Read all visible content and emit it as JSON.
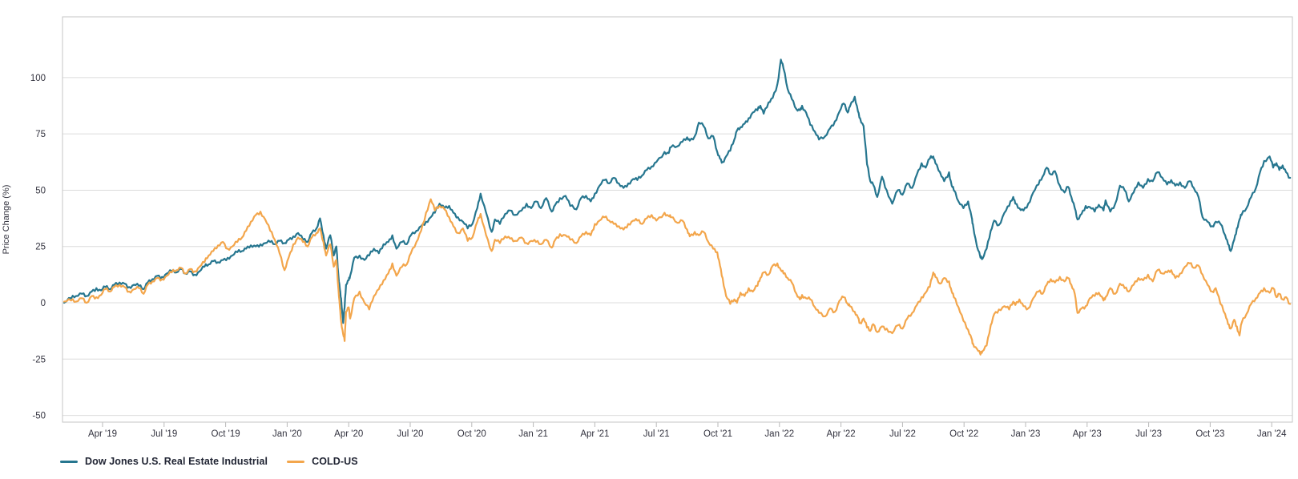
{
  "page": {
    "background": "#ffffff"
  },
  "chart_data": {
    "type": "line",
    "title": "",
    "ylabel": "Price Change (%)",
    "grid": "horizontal",
    "legend_position": "bottom-left",
    "x_axis": {
      "tick_labels": [
        "Apr '19",
        "Jul '19",
        "Oct '19",
        "Jan '20",
        "Apr '20",
        "Jul '20",
        "Oct '20",
        "Jan '21",
        "Apr '21",
        "Jul '21",
        "Oct '21",
        "Jan '22",
        "Apr '22",
        "Jul '22",
        "Oct '22",
        "Jan '23",
        "Apr '23",
        "Jul '23",
        "Oct '23",
        "Jan '24"
      ],
      "tick_months_from_apr2019": [
        0,
        3,
        6,
        9,
        12,
        15,
        18,
        21,
        24,
        27,
        30,
        33,
        36,
        39,
        42,
        45,
        48,
        51,
        54,
        57
      ]
    },
    "y_axis": {
      "ticks": [
        100,
        75,
        50,
        25,
        0,
        -25,
        -50
      ],
      "range": [
        -53,
        127
      ]
    },
    "x_months_from_apr2019": [
      -1.87,
      -1.53,
      -1.3,
      -1.0,
      -0.77,
      -0.53,
      -0.3,
      -0.07,
      0.13,
      0.37,
      0.57,
      0.83,
      1.07,
      1.3,
      1.53,
      1.77,
      2.0,
      2.2,
      2.43,
      2.67,
      2.9,
      3.13,
      3.37,
      3.6,
      3.83,
      4.03,
      4.27,
      4.5,
      4.73,
      4.97,
      5.17,
      5.4,
      5.63,
      5.87,
      6.1,
      6.33,
      6.57,
      6.8,
      7.0,
      7.23,
      7.47,
      7.7,
      7.93,
      8.17,
      8.4,
      8.63,
      8.87,
      9.07,
      9.3,
      9.53,
      9.77,
      10.0,
      10.2,
      10.43,
      10.6,
      10.77,
      10.9,
      11.1,
      11.27,
      11.4,
      11.5,
      11.57,
      11.63,
      11.73,
      11.8,
      11.87,
      12.0,
      12.07,
      12.27,
      12.53,
      12.77,
      13.0,
      13.23,
      13.47,
      13.7,
      13.93,
      14.13,
      14.33,
      14.6,
      14.83,
      15.03,
      15.3,
      15.53,
      15.77,
      16.0,
      16.2,
      16.43,
      16.67,
      16.9,
      17.1,
      17.33,
      17.57,
      17.8,
      18.03,
      18.27,
      18.43,
      18.7,
      18.97,
      19.13,
      19.37,
      19.63,
      19.87,
      20.1,
      20.43,
      20.67,
      20.9,
      21.13,
      21.37,
      21.63,
      21.9,
      22.07,
      22.3,
      22.57,
      22.8,
      23.1,
      23.33,
      23.57,
      23.8,
      24.0,
      24.23,
      24.47,
      24.7,
      24.93,
      25.17,
      25.4,
      25.63,
      25.87,
      26.07,
      26.3,
      26.53,
      26.77,
      27.0,
      27.4,
      27.6,
      27.7,
      28.03,
      28.27,
      28.5,
      28.63,
      28.87,
      29.07,
      29.3,
      29.53,
      29.77,
      29.97,
      30.1,
      30.23,
      30.4,
      30.6,
      30.8,
      30.93,
      31.1,
      31.3,
      31.5,
      31.7,
      31.93,
      32.07,
      32.23,
      32.47,
      32.67,
      32.9,
      33.07,
      33.2,
      33.4,
      33.6,
      33.83,
      34.0,
      34.1,
      34.3,
      34.5,
      34.73,
      34.93,
      35.23,
      35.47,
      35.7,
      35.93,
      36.13,
      36.33,
      36.43,
      36.67,
      36.83,
      36.93,
      37.1,
      37.27,
      37.43,
      37.57,
      37.77,
      38.0,
      38.23,
      38.5,
      38.77,
      39.0,
      39.23,
      39.47,
      39.7,
      39.93,
      40.13,
      40.33,
      40.5,
      40.6,
      40.83,
      41.03,
      41.27,
      41.4,
      41.5,
      41.73,
      41.97,
      42.2,
      42.37,
      42.43,
      42.63,
      42.8,
      42.9,
      43.1,
      43.3,
      43.47,
      43.7,
      43.97,
      44.2,
      44.4,
      44.5,
      44.7,
      44.9,
      45.13,
      45.37,
      45.63,
      45.83,
      46.03,
      46.23,
      46.43,
      46.67,
      46.9,
      47.07,
      47.23,
      47.4,
      47.53,
      47.73,
      47.93,
      48.13,
      48.37,
      48.57,
      48.8,
      48.9,
      49.13,
      49.37,
      49.6,
      49.83,
      50.03,
      50.27,
      50.5,
      50.73,
      50.97,
      51.2,
      51.43,
      51.67,
      51.9,
      52.1,
      52.3,
      52.53,
      52.77,
      53.0,
      53.2,
      53.43,
      53.63,
      53.87,
      54.1,
      54.27,
      54.5,
      54.73,
      54.87,
      55.0,
      55.17,
      55.3,
      55.43,
      55.53,
      55.77,
      56.0,
      56.23,
      56.43,
      56.63,
      56.9,
      57.07,
      57.23,
      57.37,
      57.53,
      57.7,
      57.9
    ],
    "series": [
      {
        "name": "Dow Jones U.S. Real Estate Industrial",
        "color": "#26768F",
        "values": [
          0,
          2,
          3,
          4,
          3,
          5,
          6.5,
          5.5,
          7,
          6,
          8,
          9,
          8.5,
          7,
          8,
          7.5,
          6,
          9,
          10.5,
          12,
          11.5,
          13,
          14,
          13.5,
          15,
          13,
          14,
          12.5,
          14,
          16,
          17,
          18.5,
          18,
          19,
          20,
          21,
          22.5,
          23,
          24,
          25.5,
          25,
          26,
          26.5,
          27,
          26,
          27.5,
          26.5,
          28,
          29.5,
          31,
          28,
          27,
          31,
          33,
          37.5,
          30,
          24,
          30,
          21,
          25,
          12,
          6,
          2,
          -9,
          -2,
          8,
          10,
          12,
          20,
          21,
          19,
          21,
          24,
          22,
          26,
          27,
          30,
          24,
          27,
          26,
          30,
          32,
          34,
          36,
          38,
          40,
          44,
          42,
          43,
          40,
          38,
          36,
          33,
          35,
          42,
          48.5,
          40,
          31.5,
          37,
          35,
          39.5,
          41,
          39,
          41,
          44,
          42,
          45,
          42,
          46.5,
          40.5,
          43.5,
          46.5,
          47.5,
          43,
          41.5,
          46.5,
          47.5,
          45,
          48.5,
          52,
          54.5,
          53,
          55.5,
          53,
          51,
          53,
          55,
          54.5,
          56.5,
          59,
          60.5,
          62.5,
          67,
          66.5,
          69,
          69.5,
          71.5,
          73.5,
          72,
          74,
          80,
          78.5,
          73,
          74,
          67,
          64,
          62.5,
          65,
          67.5,
          72.5,
          76.5,
          78,
          79.5,
          82,
          84.5,
          85.5,
          87.5,
          84,
          89,
          91,
          97,
          108,
          104,
          95,
          90.5,
          86,
          85.5,
          87.5,
          84.5,
          79,
          76,
          72.5,
          74,
          77.5,
          80.5,
          85,
          88.5,
          84.5,
          87,
          91.5,
          85,
          82,
          78.5,
          61.5,
          54,
          52.5,
          47,
          56,
          50,
          44,
          50,
          48,
          53,
          51,
          57,
          62,
          60,
          64,
          65,
          62,
          58,
          54,
          58,
          52,
          50,
          45,
          42,
          45,
          38,
          35,
          25,
          20,
          19.5,
          24,
          32,
          36.5,
          34.5,
          40,
          43,
          47,
          44,
          42,
          41,
          44,
          49,
          52.5,
          56,
          60,
          57,
          58.5,
          52,
          49,
          51.5,
          47,
          42,
          37,
          39.5,
          43,
          42.5,
          40.5,
          43.5,
          41,
          45.5,
          40.5,
          44,
          52,
          50,
          45,
          49,
          53.5,
          51,
          55,
          54,
          58,
          55.5,
          52.5,
          54.5,
          52,
          53.5,
          51,
          54,
          51,
          47,
          38,
          36,
          34,
          36,
          35,
          30,
          26,
          23,
          28,
          33,
          37,
          39,
          42,
          47,
          51,
          58,
          63,
          65,
          60,
          62,
          59,
          61,
          58,
          55.5
        ]
      },
      {
        "name": "COLD-US",
        "color": "#F3A64C",
        "values": [
          0.5,
          1,
          0.5,
          2,
          0,
          3,
          2.5,
          3.5,
          6,
          5,
          7,
          8,
          7,
          5,
          6,
          6.5,
          4,
          8,
          9.5,
          11,
          10.5,
          12,
          13.5,
          14.5,
          15.5,
          13,
          15,
          14,
          16,
          18,
          21,
          23,
          25.5,
          27,
          24,
          25,
          27,
          29,
          32,
          36,
          39,
          40.5,
          37,
          32,
          28,
          22,
          14.5,
          20,
          26,
          29,
          27,
          25,
          29,
          31,
          33,
          27,
          21,
          26,
          16,
          19,
          6,
          -2,
          -8,
          -14,
          -17,
          -4,
          -2,
          -7,
          2,
          5,
          0,
          -3,
          3,
          6,
          10,
          13,
          17.5,
          12,
          16,
          17,
          22,
          27,
          32,
          40,
          46,
          41,
          43,
          41.5,
          38,
          34,
          31,
          33,
          27.5,
          29,
          36,
          39.5,
          30,
          23,
          28,
          26.5,
          29.5,
          28.5,
          27.5,
          29,
          26.5,
          27.5,
          27,
          26,
          28,
          24.5,
          28,
          30.5,
          30,
          28,
          26.5,
          29.5,
          31.5,
          30,
          35,
          36.5,
          38,
          36.5,
          35,
          34,
          32.5,
          35,
          36.5,
          36.5,
          35,
          37.5,
          39,
          36.5,
          40,
          38.5,
          38,
          35.5,
          36.5,
          32.5,
          29.5,
          31.5,
          30,
          31.5,
          27,
          24,
          22.5,
          16.5,
          11,
          3,
          -0.5,
          1.5,
          0,
          4.5,
          3,
          6.5,
          5,
          7.5,
          11,
          13.5,
          12.5,
          16.5,
          17.5,
          14.5,
          13,
          11,
          9,
          4,
          1.5,
          3.5,
          2,
          1.5,
          -2,
          -4.5,
          -6,
          -2.5,
          -4,
          1,
          2.5,
          -0.5,
          -1.5,
          -4,
          -6.5,
          -9,
          -7,
          -11,
          -12.5,
          -9.5,
          -13,
          -10.5,
          -11.5,
          -13.5,
          -10,
          -11.5,
          -7,
          -4.5,
          -1,
          2.5,
          4.5,
          7,
          13.5,
          11.5,
          8.5,
          11,
          9.5,
          5,
          2.5,
          -2,
          -8,
          -12,
          -16,
          -18,
          -20.5,
          -23,
          -21.5,
          -19,
          -10,
          -5,
          -3,
          -1.5,
          -3,
          0.5,
          -1,
          1.5,
          -1.5,
          -2.5,
          2,
          5,
          4,
          8,
          10.5,
          9,
          11.5,
          9.5,
          11,
          8,
          4,
          -4.5,
          -2.5,
          -1.5,
          2,
          3,
          4.5,
          1,
          2.5,
          6.5,
          4,
          8.5,
          6.5,
          5,
          8,
          11,
          10,
          12.5,
          9.5,
          14.5,
          13,
          13.5,
          14.5,
          11,
          13,
          16,
          17.5,
          15.5,
          16.5,
          12.5,
          8,
          5,
          6.5,
          -0.5,
          -5,
          -9.5,
          -11.5,
          -7.5,
          -10.5,
          -14.5,
          -9,
          -5,
          -0.5,
          2,
          4.5,
          6.5,
          4.5,
          6.5,
          2.5,
          4,
          1.5,
          2.5,
          -0.5
        ]
      }
    ],
    "style": {
      "gridline_color": "#dcdcdc",
      "border_color": "#c6c6c6",
      "tick_color": "#b9b9b9",
      "label_color": "#33333f"
    }
  }
}
